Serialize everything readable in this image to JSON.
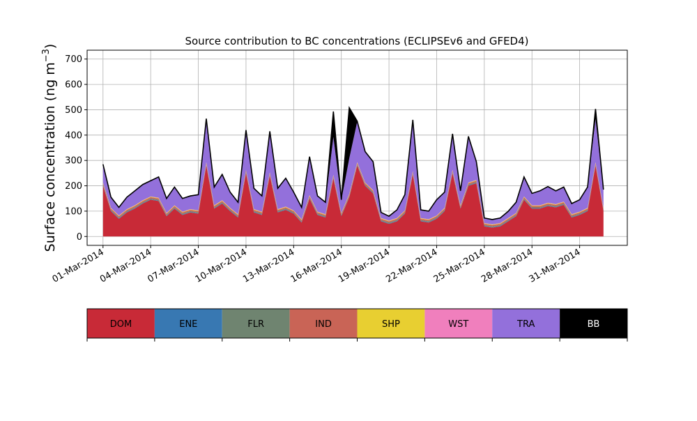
{
  "chart_data": {
    "type": "area",
    "stacked": true,
    "title": "Source contribution to BC concentrations (ECLIPSEv6 and GFED4)",
    "ylabel": "Surface concentration (ng m",
    "ylabel_exponent": "−3",
    "ylabel_suffix": ")",
    "xlabel": "",
    "ylim": [
      -35,
      735
    ],
    "xlim": [
      "2014-02-28",
      "2014-04-03"
    ],
    "grid": true,
    "yticks": [
      0,
      100,
      200,
      300,
      400,
      500,
      600,
      700
    ],
    "xticks": [
      "01-Mar-2014",
      "04-Mar-2014",
      "07-Mar-2014",
      "10-Mar-2014",
      "13-Mar-2014",
      "16-Mar-2014",
      "19-Mar-2014",
      "22-Mar-2014",
      "25-Mar-2014",
      "28-Mar-2014",
      "31-Mar-2014"
    ],
    "x": [
      "2014-03-01",
      "2014-03-01",
      "2014-03-02",
      "2014-03-02",
      "2014-03-03",
      "2014-03-03",
      "2014-03-04",
      "2014-03-04",
      "2014-03-05",
      "2014-03-05",
      "2014-03-06",
      "2014-03-06",
      "2014-03-07",
      "2014-03-07",
      "2014-03-08",
      "2014-03-08",
      "2014-03-09",
      "2014-03-09",
      "2014-03-10",
      "2014-03-10",
      "2014-03-11",
      "2014-03-11",
      "2014-03-12",
      "2014-03-12",
      "2014-03-13",
      "2014-03-13",
      "2014-03-14",
      "2014-03-14",
      "2014-03-15",
      "2014-03-15",
      "2014-03-16",
      "2014-03-16",
      "2014-03-17",
      "2014-03-17",
      "2014-03-18",
      "2014-03-18",
      "2014-03-19",
      "2014-03-19",
      "2014-03-20",
      "2014-03-20",
      "2014-03-21",
      "2014-03-21",
      "2014-03-22",
      "2014-03-22",
      "2014-03-23",
      "2014-03-23",
      "2014-03-24",
      "2014-03-24",
      "2014-03-25",
      "2014-03-25",
      "2014-03-26",
      "2014-03-26",
      "2014-03-27",
      "2014-03-27",
      "2014-03-28",
      "2014-03-28",
      "2014-03-29",
      "2014-03-29",
      "2014-03-30",
      "2014-03-30",
      "2014-03-31",
      "2014-03-31",
      "2014-04-01",
      "2014-04-01"
    ],
    "x_hour": [
      0,
      12,
      0,
      12,
      0,
      12,
      0,
      12,
      0,
      12,
      0,
      12,
      0,
      12,
      0,
      12,
      0,
      12,
      0,
      12,
      0,
      12,
      0,
      12,
      0,
      12,
      0,
      12,
      0,
      12,
      0,
      12,
      0,
      12,
      0,
      12,
      0,
      12,
      0,
      12,
      0,
      12,
      0,
      12,
      0,
      12,
      0,
      12,
      0,
      12,
      0,
      12,
      0,
      12,
      0,
      12,
      0,
      12,
      0,
      12,
      0,
      12,
      0,
      12
    ],
    "series": [
      {
        "name": "DOM",
        "color": "#c82a37",
        "values": [
          200,
          100,
          70,
          95,
          110,
          130,
          145,
          140,
          80,
          110,
          85,
          95,
          90,
          280,
          110,
          130,
          100,
          75,
          250,
          95,
          85,
          240,
          95,
          105,
          90,
          55,
          150,
          85,
          75,
          230,
          80,
          155,
          280,
          200,
          170,
          60,
          50,
          60,
          90,
          245,
          60,
          55,
          70,
          100,
          250,
          110,
          200,
          210,
          40,
          35,
          40,
          60,
          80,
          145,
          110,
          110,
          120,
          115,
          125,
          75,
          85,
          100,
          280,
          100
        ]
      },
      {
        "name": "ENE",
        "color": "#3878b2",
        "values": [
          2,
          2,
          2,
          2,
          2,
          2,
          2,
          2,
          2,
          2,
          2,
          2,
          2,
          2,
          2,
          2,
          2,
          2,
          2,
          2,
          2,
          2,
          2,
          2,
          2,
          2,
          2,
          2,
          2,
          2,
          2,
          2,
          2,
          2,
          2,
          2,
          2,
          2,
          2,
          2,
          2,
          2,
          2,
          2,
          2,
          2,
          2,
          2,
          2,
          2,
          2,
          2,
          2,
          2,
          2,
          2,
          2,
          2,
          2,
          2,
          2,
          2,
          2,
          2
        ]
      },
      {
        "name": "FLR",
        "color": "#6f8470",
        "values": [
          3,
          3,
          3,
          3,
          3,
          3,
          3,
          3,
          3,
          3,
          3,
          3,
          3,
          3,
          3,
          3,
          3,
          3,
          3,
          3,
          3,
          3,
          3,
          3,
          3,
          3,
          3,
          3,
          3,
          3,
          3,
          3,
          3,
          3,
          3,
          3,
          3,
          3,
          3,
          3,
          3,
          3,
          3,
          3,
          3,
          3,
          3,
          3,
          3,
          3,
          3,
          3,
          3,
          3,
          3,
          3,
          3,
          3,
          3,
          3,
          3,
          3,
          3,
          3
        ]
      },
      {
        "name": "IND",
        "color": "#c96456",
        "values": [
          5,
          5,
          5,
          5,
          5,
          5,
          5,
          5,
          5,
          5,
          5,
          5,
          5,
          5,
          5,
          5,
          5,
          5,
          5,
          5,
          5,
          5,
          5,
          5,
          5,
          5,
          5,
          5,
          5,
          5,
          5,
          5,
          5,
          5,
          5,
          5,
          5,
          5,
          5,
          5,
          5,
          5,
          5,
          5,
          5,
          5,
          5,
          5,
          5,
          5,
          5,
          5,
          5,
          5,
          5,
          5,
          5,
          5,
          5,
          5,
          5,
          5,
          5,
          5
        ]
      },
      {
        "name": "SHP",
        "color": "#e8cf31",
        "values": [
          2,
          2,
          2,
          2,
          2,
          2,
          2,
          2,
          2,
          2,
          2,
          2,
          2,
          2,
          2,
          2,
          2,
          2,
          2,
          2,
          2,
          2,
          2,
          2,
          2,
          2,
          2,
          2,
          2,
          2,
          2,
          2,
          2,
          2,
          2,
          2,
          2,
          2,
          2,
          2,
          2,
          2,
          2,
          2,
          2,
          2,
          2,
          2,
          2,
          2,
          2,
          2,
          2,
          2,
          2,
          2,
          2,
          2,
          2,
          2,
          2,
          2,
          2,
          2
        ]
      },
      {
        "name": "WST",
        "color": "#f07fbd",
        "values": [
          1,
          1,
          1,
          1,
          1,
          1,
          1,
          1,
          1,
          1,
          1,
          1,
          1,
          1,
          1,
          1,
          1,
          1,
          1,
          1,
          1,
          1,
          1,
          1,
          1,
          1,
          1,
          1,
          1,
          1,
          1,
          1,
          1,
          1,
          1,
          1,
          1,
          1,
          1,
          1,
          1,
          1,
          1,
          1,
          1,
          1,
          1,
          1,
          1,
          1,
          1,
          1,
          1,
          1,
          1,
          1,
          1,
          1,
          1,
          1,
          1,
          1,
          1,
          1
        ]
      },
      {
        "name": "TRA",
        "color": "#9370db",
        "values": [
          70,
          40,
          30,
          45,
          55,
          60,
          60,
          80,
          55,
          70,
          50,
          50,
          60,
          170,
          70,
          100,
          60,
          45,
          155,
          80,
          60,
          160,
          80,
          110,
          70,
          45,
          150,
          60,
          45,
          150,
          50,
          140,
          160,
          120,
          110,
          20,
          15,
          30,
          60,
          200,
          30,
          30,
          60,
          60,
          140,
          55,
          180,
          70,
          18,
          17,
          18,
          24,
          40,
          75,
          45,
          55,
          62,
          50,
          55,
          40,
          45,
          80,
          170,
          70
        ]
      },
      {
        "name": "BB",
        "color": "#000000",
        "values": [
          2,
          2,
          2,
          2,
          2,
          2,
          2,
          2,
          2,
          2,
          2,
          2,
          2,
          2,
          2,
          2,
          2,
          2,
          2,
          2,
          2,
          2,
          2,
          2,
          2,
          2,
          2,
          2,
          2,
          100,
          2,
          200,
          2,
          2,
          2,
          2,
          2,
          2,
          2,
          2,
          2,
          2,
          2,
          2,
          2,
          2,
          2,
          2,
          2,
          2,
          2,
          2,
          2,
          2,
          2,
          2,
          2,
          2,
          2,
          2,
          2,
          2,
          40,
          2
        ]
      }
    ],
    "legend": {
      "placement": "bottom",
      "entries": [
        "DOM",
        "ENE",
        "FLR",
        "IND",
        "SHP",
        "WST",
        "TRA",
        "BB"
      ],
      "colors": [
        "#c82a37",
        "#3878b2",
        "#6f8470",
        "#c96456",
        "#e8cf31",
        "#f07fbd",
        "#9370db",
        "#000000"
      ],
      "text_colors": [
        "#000000",
        "#000000",
        "#000000",
        "#000000",
        "#000000",
        "#000000",
        "#000000",
        "#ffffff"
      ]
    }
  }
}
